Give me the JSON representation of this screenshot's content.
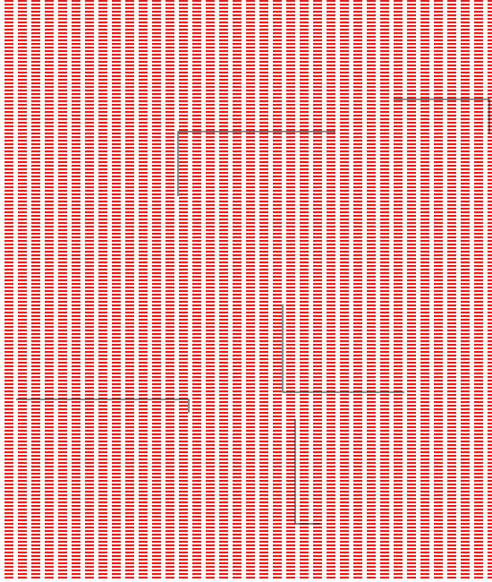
{
  "scene": {
    "description_name": "red-dashed-stripe-field",
    "colors": {
      "background": "#ffffff",
      "stripe": "#e0201b",
      "line": "#1a1a1a"
    },
    "icons": {
      "pattern": "dashed-stripe-pattern",
      "segments": "polyline-segment"
    }
  }
}
